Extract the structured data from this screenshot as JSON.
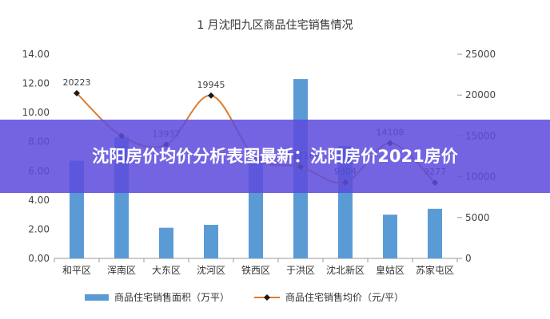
{
  "banner": {
    "title": "沈阳房价均价分析表图最新：沈阳房价2021房价"
  },
  "chart_data": {
    "type": "bar+line",
    "title": "1 月沈阳九区商品住宅销售情况",
    "categories": [
      "和平区",
      "浑南区",
      "大东区",
      "沈河区",
      "铁西区",
      "于洪区",
      "沈北新区",
      "皇姑区",
      "苏家屯区"
    ],
    "y_left": {
      "ticks": [
        "0.00",
        "2.00",
        "4.00",
        "6.00",
        "8.00",
        "10.00",
        "12.00",
        "14.00"
      ],
      "ylim": [
        0,
        14
      ]
    },
    "y_right": {
      "ticks": [
        "0",
        "5000",
        "10000",
        "15000",
        "20000",
        "25000"
      ],
      "ylim": [
        0,
        25000
      ]
    },
    "series": [
      {
        "name": "商品住宅销售面积（万平）",
        "type": "bar",
        "axis": "left",
        "values": [
          6.7,
          8.3,
          2.1,
          2.3,
          7.0,
          12.3,
          7.7,
          3.0,
          3.4
        ],
        "color": "#5b9bd5"
      },
      {
        "name": "商品住宅销售均价（元/平）",
        "type": "line",
        "axis": "right",
        "values": [
          20223,
          15000,
          13937,
          19945,
          12300,
          11216,
          9304,
          14108,
          9277
        ],
        "labels": [
          "20223",
          "",
          "13937",
          "19945",
          "",
          "11216",
          "9304",
          "14108",
          "9277"
        ],
        "line_color": "#e07b2b",
        "marker_color": "#1a1a1a"
      }
    ],
    "legend": "bottom"
  }
}
